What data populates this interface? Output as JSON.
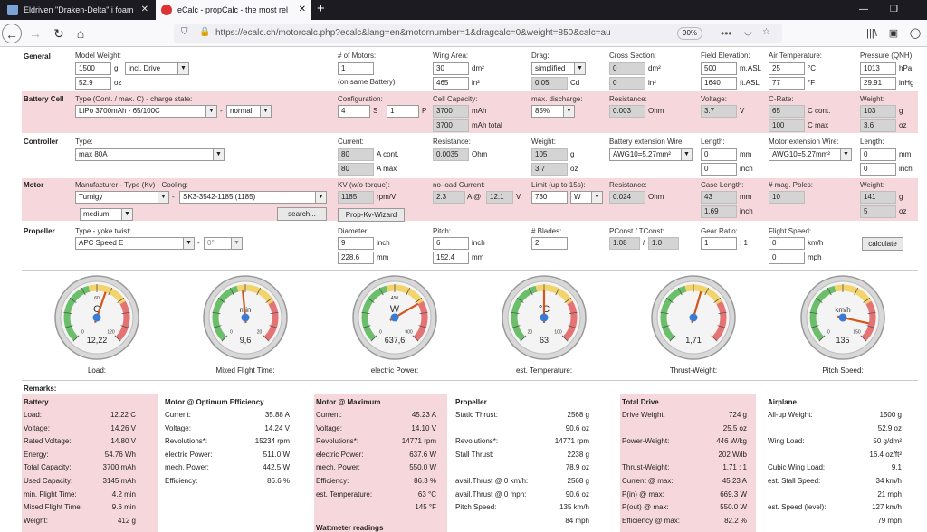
{
  "browser": {
    "tab1": "Eldriven \"Draken-Delta\" i foam",
    "tab2": "eCalc - propCalc - the most rel",
    "url": "https://ecalc.ch/motorcalc.php?ecalc&lang=en&motornumber=1&dragcalc=0&weight=850&calc=au",
    "zoom": "90%"
  },
  "general": {
    "title": "General",
    "model_weight_label": "Model Weight:",
    "model_weight": "1500",
    "model_weight_unit": "g",
    "drive_select": "incl. Drive",
    "weight_oz": "52.9",
    "oz": "oz",
    "motors_label": "# of Motors:",
    "motors": "1",
    "same_battery": "(on same Battery)",
    "wing_area_label": "Wing Area:",
    "wing_area_dm": "30",
    "wing_area_in": "465",
    "dm2": "dm²",
    "in2": "in²",
    "drag_label": "Drag:",
    "drag_select": "simplified",
    "cd": "0.05",
    "cd_unit": "Cd",
    "cross_label": "Cross Section:",
    "cross_dm": "0",
    "cross_in": "0",
    "field_label": "Field Elevation:",
    "field_m": "500",
    "field_ft": "1640",
    "masl": "m.ASL",
    "ftasl": "ft.ASL",
    "air_label": "Air Temperature:",
    "air_c": "25",
    "air_f": "77",
    "degc": "°C",
    "degf": "°F",
    "pressure_label": "Pressure (QNH):",
    "pressure_hpa": "1013",
    "pressure_inhg": "29.91",
    "hpa": "hPa",
    "inhg": "inHg"
  },
  "battery": {
    "title": "Battery Cell",
    "type_label": "Type (Cont. / max. C) - charge state:",
    "type_select": "LiPo 3700mAh - 65/100C",
    "charge_select": "normal",
    "config_label": "Configuration:",
    "s": "4",
    "s_unit": "S",
    "p": "1",
    "p_unit": "P",
    "capacity_label": "Cell Capacity:",
    "capacity": "3700",
    "capacity_unit": "mAh",
    "capacity_total": "3700",
    "capacity_total_unit": "mAh total",
    "discharge_label": "max. discharge:",
    "discharge_select": "85%",
    "resistance_label": "Resistance:",
    "resistance": "0.003",
    "ohm": "Ohm",
    "voltage_label": "Voltage:",
    "voltage": "3.7",
    "v": "V",
    "crate_label": "C-Rate:",
    "c_cont": "65",
    "c_cont_unit": "C cont.",
    "c_max": "100",
    "c_max_unit": "C max",
    "weight_label": "Weight:",
    "weight_g": "103",
    "weight_oz": "3.6",
    "g": "g",
    "oz": "oz"
  },
  "controller": {
    "title": "Controller",
    "type_label": "Type:",
    "type_select": "max 80A",
    "current_label": "Current:",
    "cont": "80",
    "cont_unit": "A cont.",
    "max": "80",
    "max_unit": "A max",
    "resistance_label": "Resistance:",
    "resistance": "0.0035",
    "ohm": "Ohm",
    "weight_label": "Weight:",
    "weight_g": "105",
    "weight_oz": "3.7",
    "g": "g",
    "oz": "oz",
    "bat_wire_label": "Battery extension Wire:",
    "bat_wire_select": "AWG10=5.27mm²",
    "length_label": "Length:",
    "bat_len_mm": "0",
    "bat_len_in": "0",
    "mm": "mm",
    "inch": "inch",
    "mot_wire_label": "Motor extension Wire:",
    "mot_wire_select": "AWG10=5.27mm²",
    "mot_len_label": "Length:",
    "mot_len_mm": "0",
    "mot_len_in": "0"
  },
  "motor": {
    "title": "Motor",
    "type_label": "Manufacturer - Type (Kv) - Cooling:",
    "manu_select": "Turnigy",
    "motor_select": "SK3-3542-1185 (1185)",
    "cooling_select": "medium",
    "search": "search...",
    "kv_label": "KV (w/o torque):",
    "kv": "1185",
    "kv_unit": "rpm/V",
    "prop_kv_wizard": "Prop-Kv-Wizard",
    "noload_label": "no-load Current:",
    "noload_a": "2.3",
    "noload_a_unit": "A @",
    "noload_v": "12.1",
    "noload_v_unit": "V",
    "limit_label": "Limit (up to 15s):",
    "limit": "730",
    "limit_select": "W",
    "resistance_label": "Resistance:",
    "resistance": "0.024",
    "ohm": "Ohm",
    "case_label": "Case Length:",
    "case_mm": "43",
    "case_in": "1.69",
    "mm": "mm",
    "inch": "inch",
    "poles_label": "# mag. Poles:",
    "poles": "10",
    "weight_label": "Weight:",
    "weight_g": "141",
    "weight_oz": "5",
    "g": "g",
    "oz": "oz"
  },
  "propeller": {
    "title": "Propeller",
    "type_label": "Type - yoke twist:",
    "type_select": "APC Speed E",
    "twist_select": "0°",
    "dia_label": "Diameter:",
    "dia_in": "9",
    "dia_mm": "228.6",
    "pitch_label": "Pitch:",
    "pitch_in": "6",
    "pitch_mm": "152.4",
    "inch": "inch",
    "mm": "mm",
    "blades_label": "# Blades:",
    "blades": "2",
    "pconst_label": "PConst / TConst:",
    "pconst": "1.08",
    "tconst": "1.0",
    "slash": "/",
    "gear_label": "Gear Ratio:",
    "gear": "1",
    "gear_unit": ": 1",
    "flight_label": "Flight Speed:",
    "flight_kmh": "0",
    "flight_mph": "0",
    "kmh": "km/h",
    "mph": "mph",
    "calculate": "calculate"
  },
  "gauges": [
    {
      "unit": "C",
      "value": "12,22",
      "caption": "Load:",
      "needle": 0.57,
      "t1": "0",
      "t2": "60",
      "t3": "120"
    },
    {
      "unit": "min",
      "value": "9,6",
      "caption": "Mixed Flight Time:",
      "needle": 0.48,
      "t1": "0",
      "t2": "",
      "t3": "20"
    },
    {
      "unit": "W",
      "value": "637,6",
      "caption": "electric Power:",
      "needle": 0.72,
      "t1": "0",
      "t2": "450",
      "t3": "900"
    },
    {
      "unit": "°C",
      "value": "63",
      "caption": "est. Temperature:",
      "needle": 0.5,
      "t1": "20",
      "t2": "",
      "t3": "100"
    },
    {
      "unit": "",
      "value": "1,71",
      "caption": "Thrust-Weight:",
      "needle": 0.56,
      "t1": "",
      "t2": "",
      "t3": ""
    },
    {
      "unit": "km/h",
      "value": "135",
      "caption": "Pitch Speed:",
      "needle": 0.88,
      "t1": "0",
      "t2": "",
      "t3": "150"
    }
  ],
  "remarks": {
    "title": "Remarks:",
    "battery": {
      "title": "Battery",
      "rows": [
        [
          "Load:",
          "12.22 C"
        ],
        [
          "Voltage:",
          "14.26 V"
        ],
        [
          "Rated Voltage:",
          "14.80 V"
        ],
        [
          "Energy:",
          "54.76 Wh"
        ],
        [
          "Total Capacity:",
          "3700 mAh"
        ],
        [
          "Used Capacity:",
          "3145 mAh"
        ],
        [
          "min. Flight Time:",
          "4.2 min"
        ],
        [
          "Mixed Flight Time:",
          "9.6 min"
        ],
        [
          "Weight:",
          "412 g"
        ]
      ]
    },
    "motor_opt": {
      "title": "Motor @ Optimum Efficiency",
      "rows": [
        [
          "Current:",
          "35.88 A"
        ],
        [
          "Voltage:",
          "14.24 V"
        ],
        [
          "Revolutions*:",
          "15234 rpm"
        ],
        [
          "electric Power:",
          "511.0 W"
        ],
        [
          "mech. Power:",
          "442.5 W"
        ],
        [
          "Efficiency:",
          "86.6 %"
        ]
      ]
    },
    "motor_max": {
      "title": "Motor @ Maximum",
      "rows": [
        [
          "Current:",
          "45.23 A"
        ],
        [
          "Voltage:",
          "14.10 V"
        ],
        [
          "Revolutions*:",
          "14771 rpm"
        ],
        [
          "electric Power:",
          "637.6 W"
        ],
        [
          "mech. Power:",
          "550.0 W"
        ],
        [
          "Efficiency:",
          "86.3 %"
        ],
        [
          "est. Temperature:",
          "63 °C"
        ],
        [
          "",
          "145 °F"
        ]
      ],
      "extra": "Wattmeter readings"
    },
    "propeller": {
      "title": "Propeller",
      "rows": [
        [
          "Static Thrust:",
          "2568 g"
        ],
        [
          "",
          "90.6 oz"
        ],
        [
          "Revolutions*:",
          "14771 rpm"
        ],
        [
          "Stall Thrust:",
          "2238 g"
        ],
        [
          "",
          "78.9 oz"
        ],
        [
          "avail.Thrust @ 0 km/h:",
          "2568 g"
        ],
        [
          "avail.Thrust @ 0 mph:",
          "90.6 oz"
        ],
        [
          "Pitch Speed:",
          "135 km/h"
        ],
        [
          "",
          "84 mph"
        ]
      ]
    },
    "total": {
      "title": "Total Drive",
      "rows": [
        [
          "Drive Weight:",
          "724 g"
        ],
        [
          "",
          "25.5 oz"
        ],
        [
          "Power-Weight:",
          "446 W/kg"
        ],
        [
          "",
          "202 W/lb"
        ],
        [
          "Thrust-Weight:",
          "1.71 : 1"
        ],
        [
          "Current @ max:",
          "45.23 A"
        ],
        [
          "P(in) @ max:",
          "669.3 W"
        ],
        [
          "P(out) @ max:",
          "550.0 W"
        ],
        [
          "Efficiency @ max:",
          "82.2 %"
        ]
      ]
    },
    "airplane": {
      "title": "Airplane",
      "rows": [
        [
          "All-up Weight:",
          "1500 g"
        ],
        [
          "",
          "52.9 oz"
        ],
        [
          "Wing Load:",
          "50 g/dm²"
        ],
        [
          "",
          "16.4 oz/ft²"
        ],
        [
          "Cubic Wing Load:",
          "9.1"
        ],
        [
          "est. Stall Speed:",
          "34 km/h"
        ],
        [
          "",
          "21 mph"
        ],
        [
          "est. Speed (level):",
          "127 km/h"
        ],
        [
          "",
          "79 mph"
        ]
      ]
    }
  }
}
